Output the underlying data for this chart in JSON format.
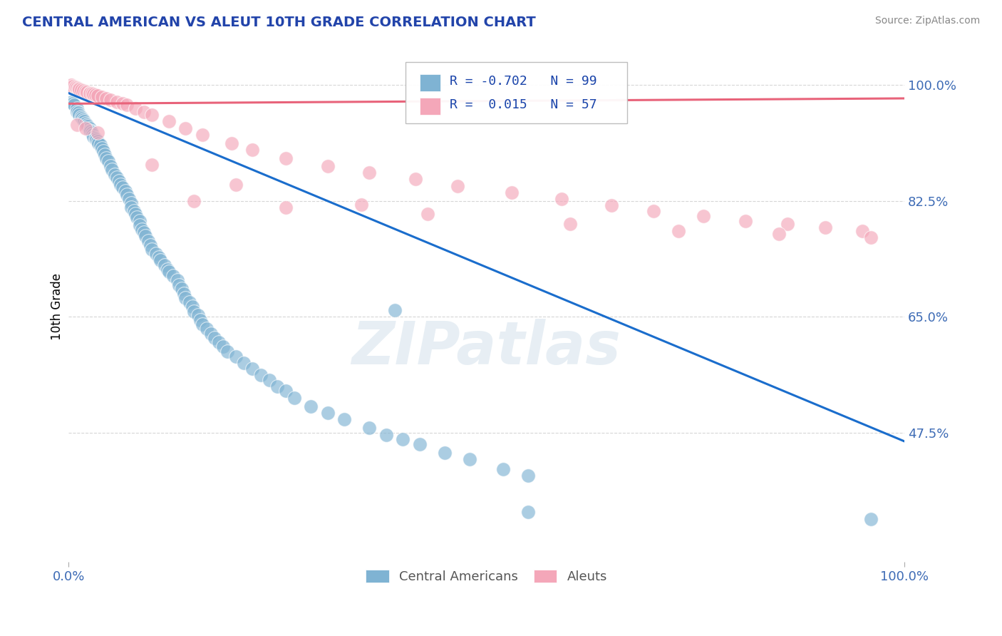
{
  "title": "CENTRAL AMERICAN VS ALEUT 10TH GRADE CORRELATION CHART",
  "source_text": "Source: ZipAtlas.com",
  "ylabel": "10th Grade",
  "xlim": [
    0.0,
    1.0
  ],
  "ylim": [
    0.28,
    1.05
  ],
  "xtick_labels": [
    "0.0%",
    "100.0%"
  ],
  "ytick_labels": [
    "47.5%",
    "65.0%",
    "82.5%",
    "100.0%"
  ],
  "ytick_positions": [
    0.475,
    0.65,
    0.825,
    1.0
  ],
  "grid_color": "#cccccc",
  "background_color": "#ffffff",
  "blue_color": "#7fb3d3",
  "pink_color": "#f4a7b9",
  "line_blue": "#1a6dcc",
  "line_pink": "#e8637a",
  "legend_r_blue": "-0.702",
  "legend_n_blue": "99",
  "legend_r_pink": "0.015",
  "legend_n_pink": "57",
  "watermark": "ZIPatlas",
  "blue_line_x": [
    0.0,
    1.0
  ],
  "blue_line_y": [
    0.988,
    0.462
  ],
  "pink_line_x": [
    0.0,
    1.0
  ],
  "pink_line_y": [
    0.972,
    0.98
  ],
  "blue_points_x": [
    0.003,
    0.005,
    0.007,
    0.01,
    0.01,
    0.012,
    0.013,
    0.015,
    0.016,
    0.018,
    0.019,
    0.02,
    0.022,
    0.023,
    0.025,
    0.025,
    0.026,
    0.028,
    0.029,
    0.03,
    0.032,
    0.033,
    0.035,
    0.036,
    0.038,
    0.04,
    0.042,
    0.043,
    0.045,
    0.048,
    0.05,
    0.052,
    0.055,
    0.058,
    0.06,
    0.062,
    0.065,
    0.068,
    0.07,
    0.072,
    0.075,
    0.075,
    0.078,
    0.08,
    0.082,
    0.085,
    0.085,
    0.088,
    0.09,
    0.092,
    0.095,
    0.098,
    0.1,
    0.105,
    0.108,
    0.11,
    0.115,
    0.118,
    0.12,
    0.125,
    0.13,
    0.132,
    0.135,
    0.138,
    0.14,
    0.145,
    0.148,
    0.15,
    0.155,
    0.158,
    0.16,
    0.165,
    0.17,
    0.175,
    0.18,
    0.185,
    0.19,
    0.2,
    0.21,
    0.22,
    0.23,
    0.24,
    0.25,
    0.26,
    0.27,
    0.29,
    0.31,
    0.33,
    0.36,
    0.38,
    0.4,
    0.42,
    0.45,
    0.48,
    0.52,
    0.55,
    0.39,
    0.55,
    0.96
  ],
  "blue_points_y": [
    0.975,
    0.972,
    0.97,
    0.965,
    0.96,
    0.958,
    0.955,
    0.952,
    0.95,
    0.948,
    0.945,
    0.942,
    0.94,
    0.938,
    0.935,
    0.932,
    0.93,
    0.928,
    0.925,
    0.922,
    0.92,
    0.918,
    0.915,
    0.912,
    0.91,
    0.905,
    0.9,
    0.895,
    0.89,
    0.885,
    0.878,
    0.872,
    0.865,
    0.86,
    0.855,
    0.85,
    0.845,
    0.84,
    0.835,
    0.828,
    0.822,
    0.815,
    0.81,
    0.805,
    0.8,
    0.795,
    0.788,
    0.782,
    0.778,
    0.772,
    0.765,
    0.758,
    0.752,
    0.745,
    0.74,
    0.735,
    0.728,
    0.722,
    0.718,
    0.712,
    0.705,
    0.698,
    0.692,
    0.685,
    0.678,
    0.672,
    0.665,
    0.658,
    0.652,
    0.645,
    0.638,
    0.632,
    0.625,
    0.618,
    0.612,
    0.605,
    0.598,
    0.59,
    0.58,
    0.572,
    0.562,
    0.555,
    0.545,
    0.538,
    0.528,
    0.515,
    0.505,
    0.495,
    0.482,
    0.472,
    0.465,
    0.458,
    0.445,
    0.435,
    0.42,
    0.41,
    0.66,
    0.355,
    0.345
  ],
  "pink_points_x": [
    0.003,
    0.005,
    0.008,
    0.01,
    0.012,
    0.013,
    0.015,
    0.018,
    0.02,
    0.022,
    0.025,
    0.025,
    0.028,
    0.03,
    0.032,
    0.035,
    0.04,
    0.045,
    0.05,
    0.058,
    0.065,
    0.07,
    0.08,
    0.09,
    0.1,
    0.12,
    0.14,
    0.16,
    0.195,
    0.22,
    0.26,
    0.31,
    0.36,
    0.415,
    0.465,
    0.53,
    0.59,
    0.65,
    0.7,
    0.76,
    0.81,
    0.86,
    0.905,
    0.95,
    0.01,
    0.02,
    0.035,
    0.1,
    0.2,
    0.35,
    0.43,
    0.6,
    0.73,
    0.85,
    0.96,
    0.15,
    0.26
  ],
  "pink_points_y": [
    1.0,
    0.998,
    0.997,
    0.996,
    0.995,
    0.994,
    0.993,
    0.992,
    0.991,
    0.99,
    0.989,
    0.988,
    0.987,
    0.986,
    0.985,
    0.984,
    0.982,
    0.98,
    0.978,
    0.975,
    0.972,
    0.97,
    0.965,
    0.96,
    0.955,
    0.945,
    0.935,
    0.925,
    0.912,
    0.902,
    0.89,
    0.878,
    0.868,
    0.858,
    0.848,
    0.838,
    0.828,
    0.818,
    0.81,
    0.802,
    0.795,
    0.79,
    0.785,
    0.78,
    0.94,
    0.935,
    0.928,
    0.88,
    0.85,
    0.82,
    0.805,
    0.79,
    0.78,
    0.775,
    0.77,
    0.825,
    0.815
  ]
}
